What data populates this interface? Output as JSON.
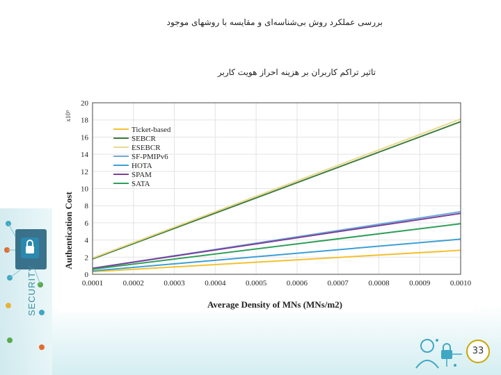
{
  "slide": {
    "title": "بررسی عملکرد روش بی‌شناسه‌ای و مقایسه با روشهای موجود",
    "subtitle": "تاثیر تراکم کاربران بر هزینه احراز هویت کاربر",
    "page_number": "33",
    "decoration_text": "SECURITY"
  },
  "chart_data": {
    "type": "line",
    "xlabel": "Average Density of MNs (MNs/m2)",
    "ylabel": "Authentication Cost",
    "yscale_note": "x10⁵",
    "xlim": [
      0.0001,
      0.001
    ],
    "ylim": [
      0,
      20
    ],
    "xticks": [
      "0.0001",
      "0.0002",
      "0.0003",
      "0.0004",
      "0.0005",
      "0.0006",
      "0.0007",
      "0.0008",
      "0.0009",
      "0.0010"
    ],
    "yticks": [
      0,
      2,
      4,
      6,
      8,
      10,
      12,
      14,
      16,
      18,
      20
    ],
    "x": [
      0.0001,
      0.001
    ],
    "grid": true,
    "legend": "top-left",
    "series": [
      {
        "name": "Ticket-based",
        "color": "#f2c12e",
        "values": [
          0.3,
          2.8
        ]
      },
      {
        "name": "SEBCR",
        "color": "#3e7d3e",
        "values": [
          1.8,
          17.8
        ]
      },
      {
        "name": "ESEBCR",
        "color": "#ead98b",
        "values": [
          1.9,
          18.1
        ]
      },
      {
        "name": "SF-PMIPv6",
        "color": "#6aa9d8",
        "values": [
          0.7,
          7.3
        ]
      },
      {
        "name": "HOTA",
        "color": "#3b9fd6",
        "values": [
          0.4,
          4.1
        ]
      },
      {
        "name": "SPAM",
        "color": "#7d3f98",
        "values": [
          0.7,
          7.1
        ]
      },
      {
        "name": "SATA",
        "color": "#2e9f5a",
        "values": [
          0.6,
          5.9
        ]
      }
    ]
  }
}
